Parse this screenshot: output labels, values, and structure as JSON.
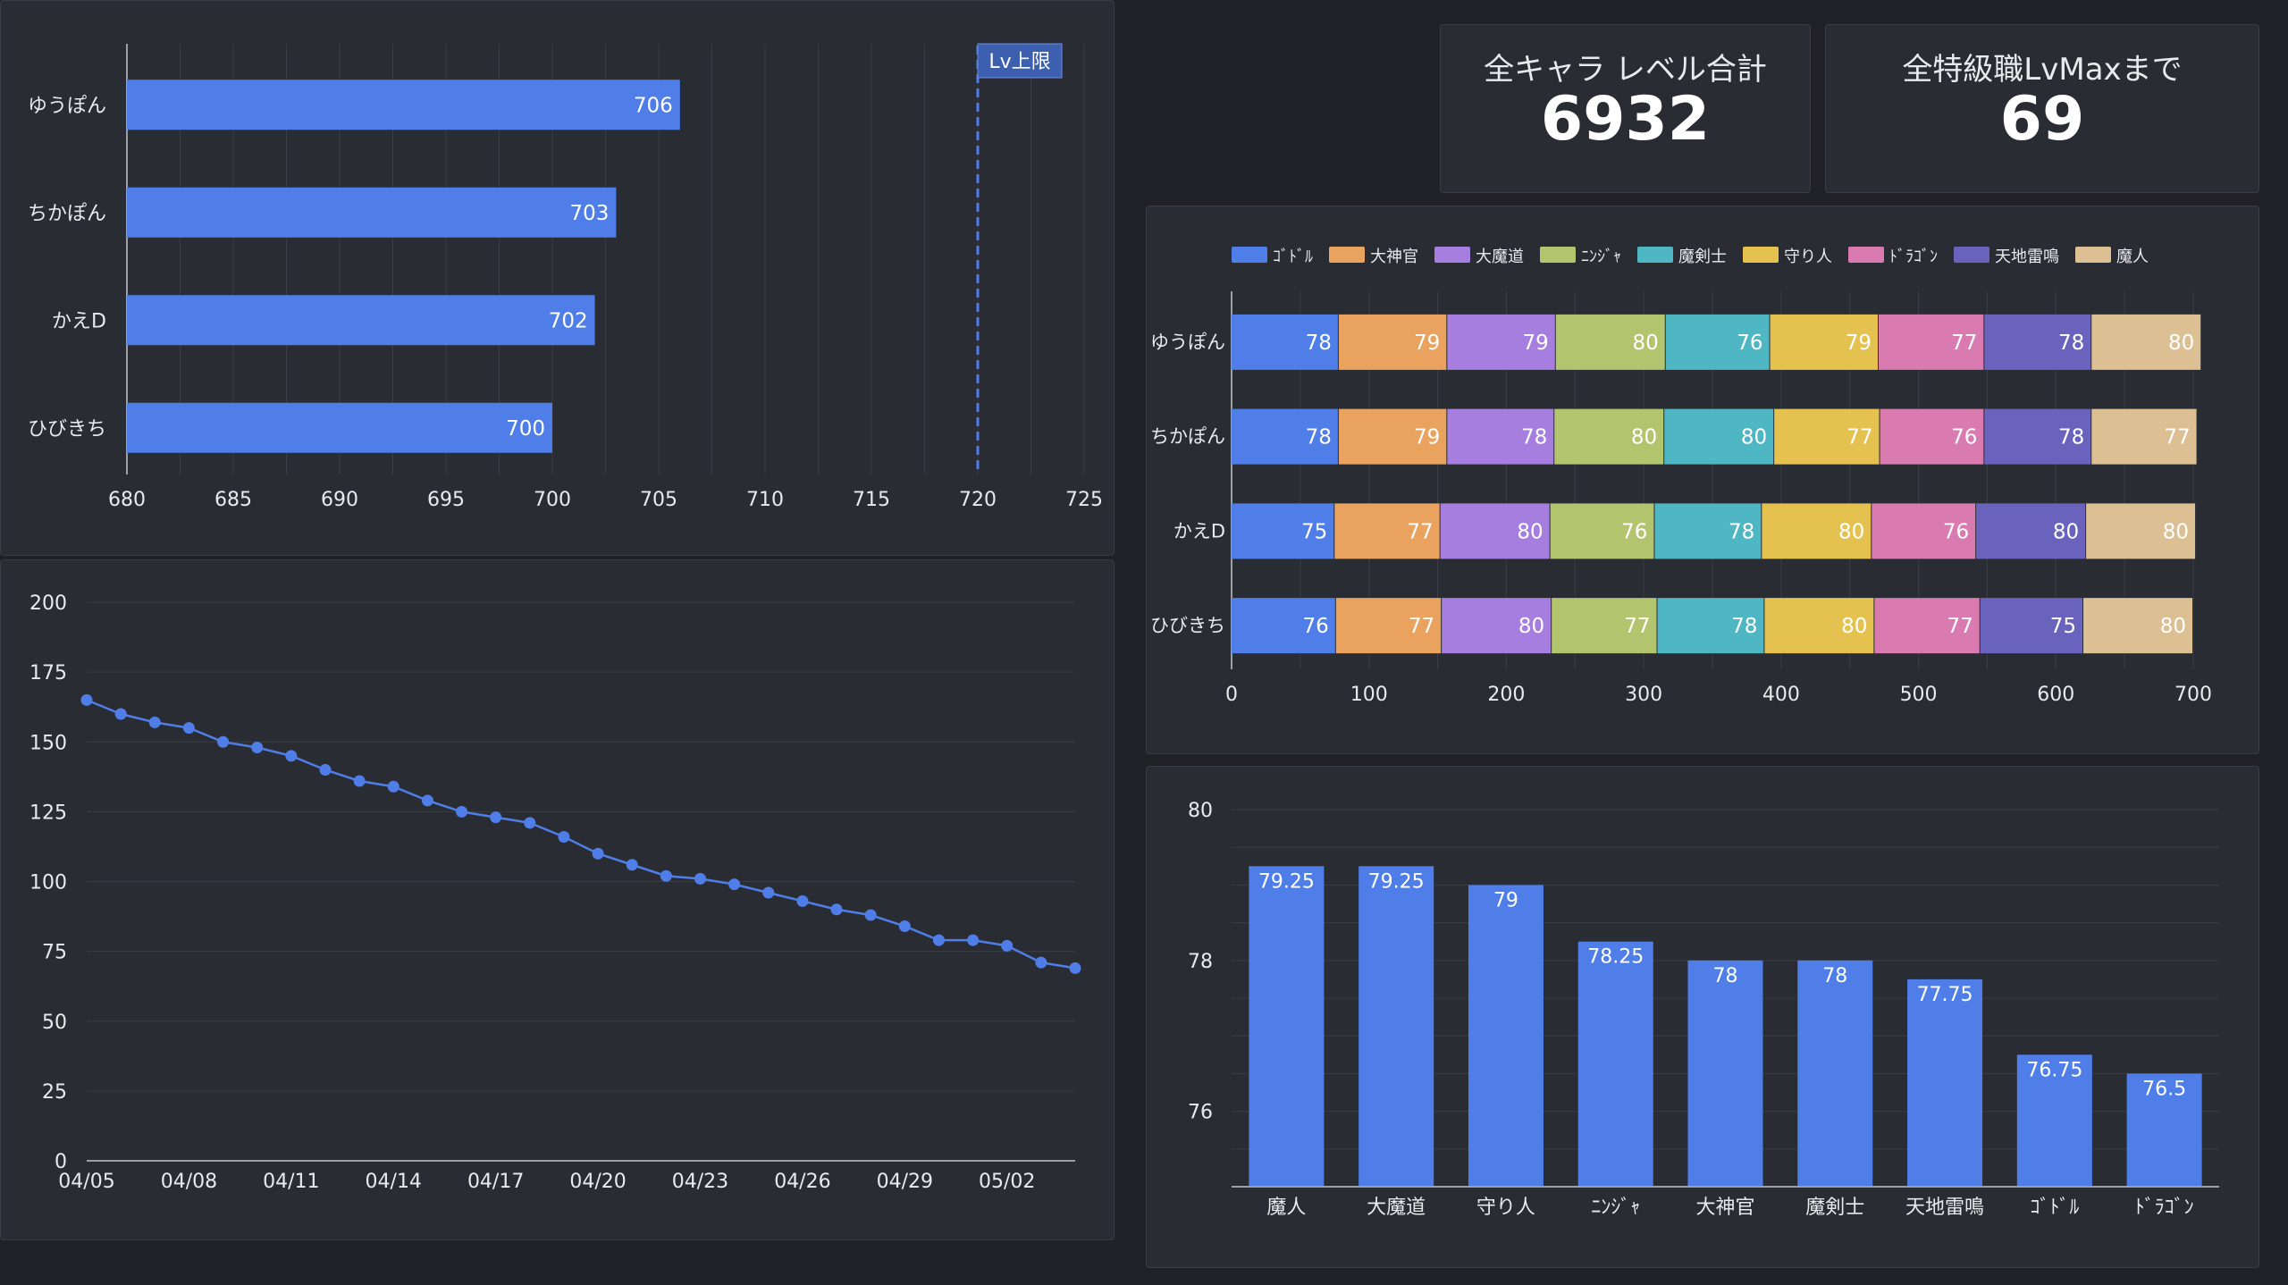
{
  "kpis": [
    {
      "title": "全キャラ レベル合計",
      "value": "6932"
    },
    {
      "title": "全特級職LvMaxまで",
      "value": "69"
    }
  ],
  "colors": {
    "primary": "#4f7ee8",
    "grid": "#3a3d45",
    "axis_text": "#e8eaed",
    "label_text": "#ffffff",
    "panel_bg": "#2a2c33",
    "limit_line": "#4f7ee8"
  },
  "chart_data": [
    {
      "id": "level_totals",
      "type": "bar",
      "orientation": "horizontal",
      "categories": [
        "ゆうぽん",
        "ちかぽん",
        "かえD",
        "ひびきち"
      ],
      "values": [
        706,
        703,
        702,
        700
      ],
      "xlim": [
        680,
        725
      ],
      "xticks": [
        680,
        685,
        690,
        695,
        700,
        705,
        710,
        715,
        720,
        725
      ],
      "reference_line": {
        "value": 720,
        "label": "Lv上限"
      },
      "grid": true
    },
    {
      "id": "remaining_trend",
      "type": "line",
      "x": [
        "04/05",
        "04/06",
        "04/07",
        "04/08",
        "04/09",
        "04/10",
        "04/11",
        "04/12",
        "04/13",
        "04/14",
        "04/15",
        "04/16",
        "04/17",
        "04/18",
        "04/19",
        "04/20",
        "04/21",
        "04/22",
        "04/23",
        "04/24",
        "04/25",
        "04/26",
        "04/27",
        "04/28",
        "04/29",
        "04/30",
        "05/01",
        "05/02",
        "05/03",
        "05/04"
      ],
      "values": [
        165,
        160,
        157,
        155,
        150,
        148,
        145,
        140,
        136,
        134,
        129,
        125,
        123,
        121,
        116,
        110,
        106,
        102,
        101,
        99,
        96,
        93,
        90,
        88,
        84,
        79,
        79,
        77,
        71,
        69
      ],
      "xtick_labels": [
        "04/05",
        "04/08",
        "04/11",
        "04/14",
        "04/17",
        "04/20",
        "04/23",
        "04/26",
        "04/29",
        "05/02"
      ],
      "ylim": [
        0,
        200
      ],
      "yticks": [
        0,
        25,
        50,
        75,
        100,
        125,
        150,
        175,
        200
      ],
      "grid": true
    },
    {
      "id": "job_levels_stacked",
      "type": "bar",
      "orientation": "horizontal",
      "stacked": true,
      "categories": [
        "ゆうぽん",
        "ちかぽん",
        "かえD",
        "ひびきち"
      ],
      "series": [
        {
          "name": "ｺﾞﾄﾞﾙ",
          "color": "#4f7ee8",
          "values": [
            78,
            78,
            75,
            76
          ]
        },
        {
          "name": "大神官",
          "color": "#e9a35f",
          "values": [
            79,
            79,
            77,
            77
          ]
        },
        {
          "name": "大魔道",
          "color": "#a67ee0",
          "values": [
            79,
            78,
            80,
            80
          ]
        },
        {
          "name": "ﾆﾝｼﾞｬ",
          "color": "#b3c46e",
          "values": [
            80,
            80,
            76,
            77
          ]
        },
        {
          "name": "魔剣士",
          "color": "#4fb6c4",
          "values": [
            76,
            80,
            78,
            78
          ]
        },
        {
          "name": "守り人",
          "color": "#e5c24f",
          "values": [
            79,
            77,
            80,
            80
          ]
        },
        {
          "name": "ﾄﾞﾗｺﾞﾝ",
          "color": "#d97ab0",
          "values": [
            77,
            76,
            76,
            77
          ]
        },
        {
          "name": "天地雷鳴",
          "color": "#6a63bd",
          "values": [
            78,
            78,
            80,
            75
          ]
        },
        {
          "name": "魔人",
          "color": "#dcbf92",
          "values": [
            80,
            77,
            80,
            80
          ]
        }
      ],
      "xlim": [
        0,
        700
      ],
      "xticks": [
        0,
        100,
        200,
        300,
        400,
        500,
        600,
        700
      ],
      "legend": "top",
      "grid": true
    },
    {
      "id": "job_averages",
      "type": "bar",
      "categories": [
        "魔人",
        "大魔道",
        "守り人",
        "ﾆﾝｼﾞｬ",
        "大神官",
        "魔剣士",
        "天地雷鳴",
        "ｺﾞﾄﾞﾙ",
        "ﾄﾞﾗｺﾞﾝ"
      ],
      "values": [
        79.25,
        79.25,
        79,
        78.25,
        78,
        78,
        77.75,
        76.75,
        76.5
      ],
      "value_labels": [
        "79.25",
        "79.25",
        "79",
        "78.25",
        "78",
        "78",
        "77.75",
        "76.75",
        "76.5"
      ],
      "ylim": [
        75,
        80
      ],
      "yticks": [
        76,
        78,
        80
      ],
      "grid": true
    }
  ]
}
